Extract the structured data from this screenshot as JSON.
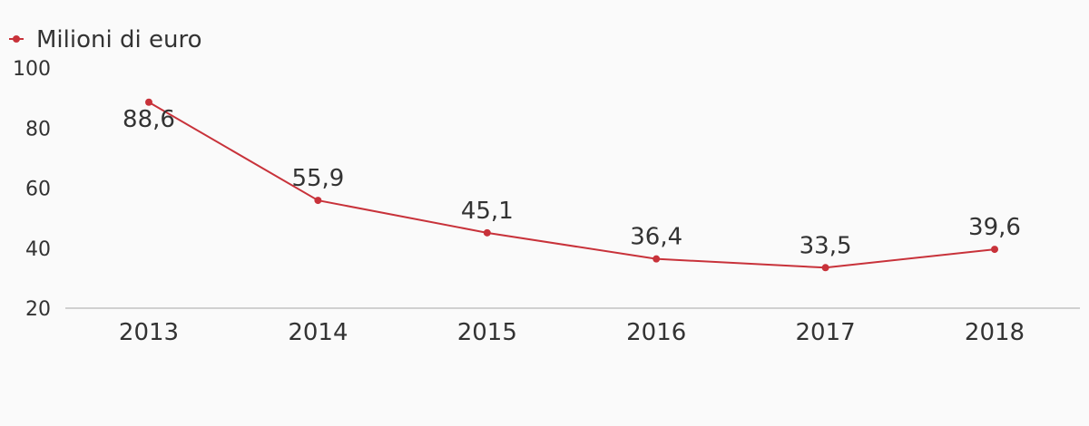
{
  "chart_data": {
    "type": "line",
    "categories": [
      "2013",
      "2014",
      "2015",
      "2016",
      "2017",
      "2018"
    ],
    "series": [
      {
        "name": "Milioni di euro",
        "values": [
          88.6,
          55.9,
          45.1,
          36.4,
          33.5,
          39.6
        ],
        "labels": [
          "88,6",
          "55,9",
          "45,1",
          "36,4",
          "33,5",
          "39,6"
        ],
        "color": "#c8323a"
      }
    ],
    "yticks": [
      "100",
      "80",
      "60",
      "40",
      "20"
    ],
    "ytick_values": [
      100,
      80,
      60,
      40,
      20
    ],
    "ylim": [
      20,
      100
    ],
    "legend": "top-left",
    "grid": false,
    "axis_color": "#d0d0d0"
  }
}
